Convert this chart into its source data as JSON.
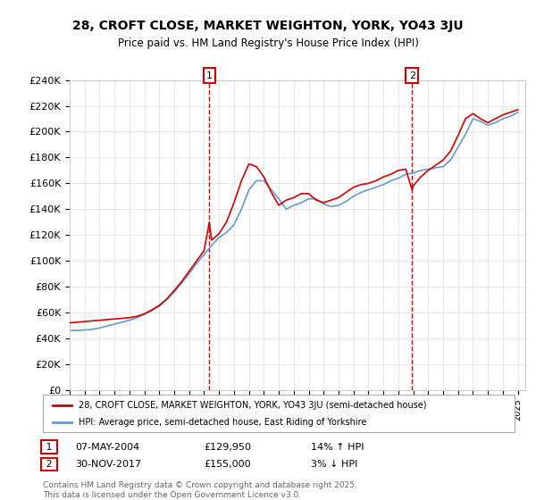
{
  "title": "28, CROFT CLOSE, MARKET WEIGHTON, YORK, YO43 3JU",
  "subtitle": "Price paid vs. HM Land Registry's House Price Index (HPI)",
  "legend_label_red": "28, CROFT CLOSE, MARKET WEIGHTON, YORK, YO43 3JU (semi-detached house)",
  "legend_label_blue": "HPI: Average price, semi-detached house, East Riding of Yorkshire",
  "transaction1": {
    "label": "1",
    "date": "07-MAY-2004",
    "price": 129950,
    "hpi_rel": "14% ↑ HPI",
    "year": 2004.35
  },
  "transaction2": {
    "label": "2",
    "date": "30-NOV-2017",
    "price": 155000,
    "hpi_rel": "3% ↓ HPI",
    "year": 2017.92
  },
  "footer1": "Contains HM Land Registry data © Crown copyright and database right 2025.",
  "footer2": "This data is licensed under the Open Government Licence v3.0.",
  "ylim": [
    0,
    240000
  ],
  "yticks": [
    0,
    20000,
    40000,
    60000,
    80000,
    100000,
    120000,
    140000,
    160000,
    180000,
    200000,
    220000,
    240000
  ],
  "red_color": "#cc0000",
  "blue_color": "#6699cc",
  "dashed_color": "#cc0000",
  "background_color": "#ffffff",
  "hpi_years": [
    1995,
    1995.5,
    1996,
    1996.5,
    1997,
    1997.5,
    1998,
    1998.5,
    1999,
    1999.5,
    2000,
    2000.5,
    2001,
    2001.5,
    2002,
    2002.5,
    2003,
    2003.5,
    2004,
    2004.5,
    2005,
    2005.5,
    2006,
    2006.5,
    2007,
    2007.5,
    2008,
    2008.5,
    2009,
    2009.5,
    2010,
    2010.5,
    2011,
    2011.5,
    2012,
    2012.5,
    2013,
    2013.5,
    2014,
    2014.5,
    2015,
    2015.5,
    2016,
    2016.5,
    2017,
    2017.5,
    2018,
    2018.5,
    2019,
    2019.5,
    2020,
    2020.5,
    2021,
    2021.5,
    2022,
    2022.5,
    2023,
    2023.5,
    2024,
    2024.5,
    2025
  ],
  "hpi_values": [
    46000,
    46200,
    46500,
    47000,
    48000,
    49500,
    51000,
    52500,
    54000,
    56000,
    58500,
    61500,
    65000,
    70000,
    76000,
    83000,
    90000,
    98000,
    105000,
    112000,
    118000,
    122000,
    128000,
    140000,
    155000,
    162000,
    162000,
    155000,
    148000,
    140000,
    143000,
    145000,
    148000,
    148000,
    144000,
    142000,
    143000,
    146000,
    150000,
    153000,
    155000,
    157000,
    159000,
    162000,
    164000,
    167000,
    168000,
    170000,
    171000,
    172000,
    173000,
    178000,
    188000,
    198000,
    210000,
    208000,
    205000,
    207000,
    210000,
    212000,
    215000
  ],
  "red_years": [
    1995,
    1995.5,
    1996,
    1996.5,
    1997,
    1997.5,
    1998,
    1998.5,
    1999,
    1999.5,
    2000,
    2000.5,
    2001,
    2001.5,
    2002,
    2002.5,
    2003,
    2003.5,
    2004,
    2004.35,
    2004.5,
    2005,
    2005.5,
    2006,
    2006.5,
    2007,
    2007.5,
    2008,
    2008.5,
    2009,
    2009.5,
    2010,
    2010.5,
    2011,
    2011.5,
    2012,
    2012.5,
    2013,
    2013.5,
    2014,
    2014.5,
    2015,
    2015.5,
    2016,
    2016.5,
    2017,
    2017.5,
    2017.92,
    2018,
    2018.5,
    2019,
    2019.5,
    2020,
    2020.5,
    2021,
    2021.5,
    2022,
    2022.5,
    2023,
    2023.5,
    2024,
    2024.5,
    2025
  ],
  "red_values": [
    52000,
    52500,
    53000,
    53500,
    54000,
    54500,
    55000,
    55500,
    56000,
    57000,
    59000,
    62000,
    65500,
    70500,
    77000,
    84000,
    92000,
    100000,
    108000,
    129950,
    116000,
    121000,
    130000,
    145000,
    162000,
    175000,
    173000,
    165000,
    153000,
    143000,
    147000,
    149000,
    152000,
    152000,
    147000,
    145000,
    147000,
    149000,
    153000,
    157000,
    159000,
    160000,
    162000,
    165000,
    167000,
    170000,
    171000,
    155000,
    158000,
    165000,
    170000,
    174000,
    178000,
    185000,
    197000,
    210000,
    214000,
    210000,
    207000,
    210000,
    213000,
    215000,
    217000
  ]
}
